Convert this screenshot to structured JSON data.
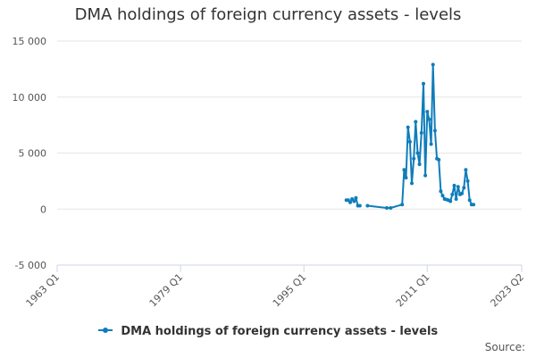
{
  "chart_data": {
    "type": "line",
    "title": "DMA holdings of foreign currency assets - levels",
    "xlabel": "",
    "ylabel": "",
    "ylim": [
      -5000,
      15000
    ],
    "xlim": [
      "1963 Q1",
      "2023 Q2"
    ],
    "y_ticks": [
      "15 000",
      "10 000",
      "5 000",
      "0",
      "-5 000"
    ],
    "x_ticks": [
      "1963 Q1",
      "1979 Q1",
      "1995 Q1",
      "2011 Q1",
      "2023 Q2"
    ],
    "grid": "horizontal",
    "legend": "bottom",
    "series": [
      {
        "name": "DMA holdings of foreign currency assets - levels",
        "color": "#0f7dba",
        "x": [
          "2000 Q3",
          "2000 Q4",
          "2001 Q1",
          "2001 Q2",
          "2001 Q3",
          "2001 Q4",
          "2002 Q1",
          "2002 Q2",
          "2002 Q3",
          "2003 Q2",
          "2005 Q4",
          "2006 Q2",
          "2007 Q4",
          "2008 Q1",
          "2008 Q2",
          "2008 Q3",
          "2008 Q4",
          "2009 Q1",
          "2009 Q2",
          "2009 Q3",
          "2009 Q4",
          "2010 Q1",
          "2010 Q2",
          "2010 Q3",
          "2010 Q4",
          "2011 Q1",
          "2011 Q2",
          "2011 Q3",
          "2011 Q4",
          "2012 Q1",
          "2012 Q2",
          "2012 Q3",
          "2012 Q4",
          "2013 Q1",
          "2013 Q2",
          "2013 Q3",
          "2013 Q4",
          "2014 Q1",
          "2014 Q2",
          "2014 Q3",
          "2014 Q4",
          "2015 Q1",
          "2015 Q2",
          "2015 Q3",
          "2015 Q4",
          "2016 Q1",
          "2016 Q2",
          "2016 Q3",
          "2016 Q4",
          "2017 Q1",
          "2017 Q2",
          "2017 Q3",
          "2017 Q4",
          "2018 Q1",
          "2018 Q2",
          "2018 Q3",
          "2018 Q4"
        ],
        "y": [
          800,
          800,
          600,
          900,
          700,
          1000,
          300,
          300,
          null,
          300,
          100,
          100,
          400,
          3500,
          2800,
          7300,
          6000,
          2300,
          4500,
          7800,
          5000,
          4000,
          6800,
          11200,
          3000,
          8700,
          8000,
          5800,
          12900,
          7000,
          4500,
          4400,
          1600,
          1200,
          900,
          850,
          800,
          700,
          1300,
          2100,
          900,
          2000,
          1300,
          1400,
          1900,
          3500,
          2500,
          800,
          400,
          400,
          null,
          null,
          null,
          null,
          null,
          null,
          null
        ]
      }
    ]
  },
  "source_label": "Source:"
}
